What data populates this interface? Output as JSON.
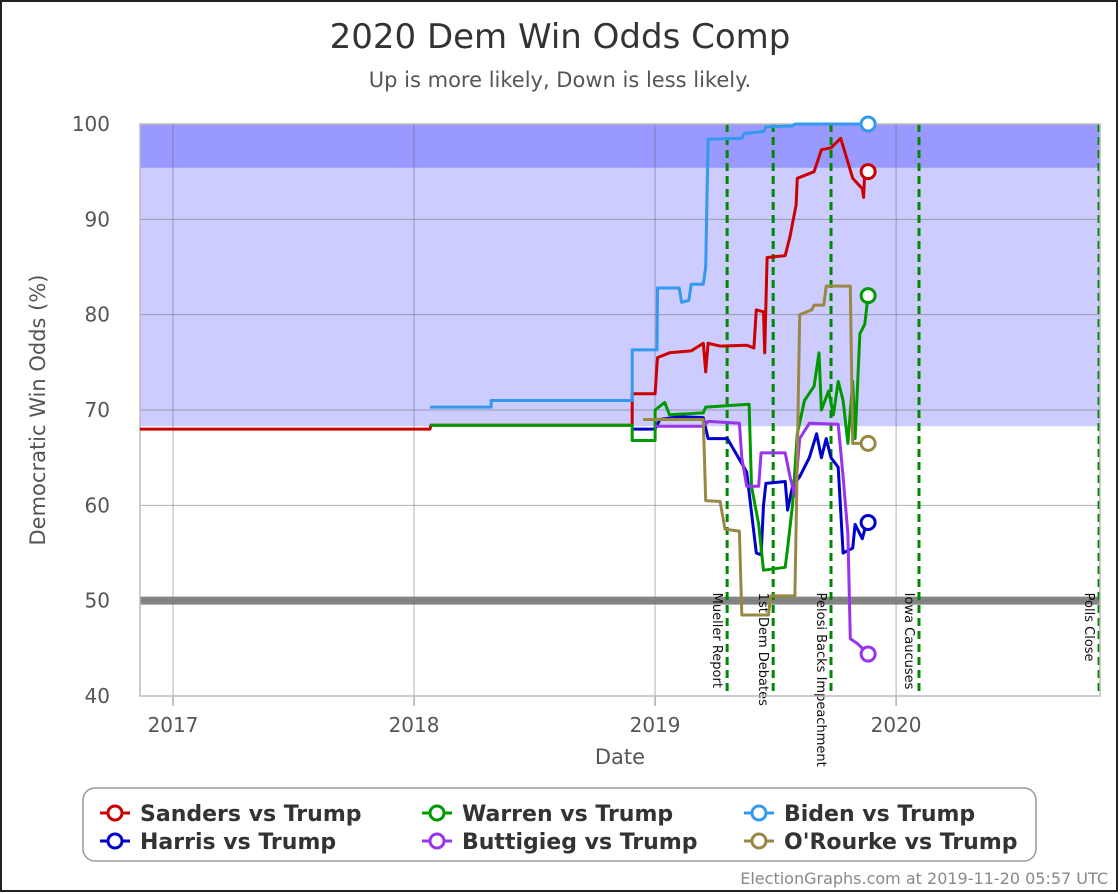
{
  "chart_data": {
    "type": "line",
    "title": "2020 Dem Win Odds Comp",
    "subtitle": "Up is more likely, Down is less likely.",
    "x_label": "Date",
    "y_label": "Democratic Win Odds (%)",
    "footer": "ElectionGraphs.com at 2019-11-20 05:57 UTC",
    "xlim": [
      2016.863,
      2020.846
    ],
    "xticks": [
      2017,
      2018,
      2019,
      2020
    ],
    "ylim": [
      40,
      100
    ],
    "yticks": [
      40,
      50,
      60,
      70,
      80,
      90,
      100
    ],
    "grid": true,
    "bands": [
      {
        "from": 68.3,
        "to": 95.4,
        "color": "#ccccff"
      },
      {
        "from": 95.4,
        "to": 100,
        "color": "#9999ff"
      }
    ],
    "reference_line": {
      "value": 50,
      "color": "#777777"
    },
    "events": [
      {
        "label": "Mueller Report",
        "x": 2019.299
      },
      {
        "label": "1st Dem Debates",
        "x": 2019.49
      },
      {
        "label": "Pelosi Backs Impeachment",
        "x": 2019.73
      },
      {
        "label": "Iowa Caucuses",
        "x": 2020.095
      },
      {
        "label": "Polls Close",
        "x": 2020.842
      }
    ],
    "series": [
      {
        "name": "Sanders vs Trump",
        "color": "#cc0000",
        "x": [
          2016.863,
          2018.066,
          2018.07,
          2018.905,
          2018.905,
          2019.0,
          2019.01,
          2019.06,
          2019.15,
          2019.2,
          2019.21,
          2019.22,
          2019.27,
          2019.38,
          2019.41,
          2019.42,
          2019.45,
          2019.455,
          2019.465,
          2019.54,
          2019.56,
          2019.585,
          2019.59,
          2019.66,
          2019.69,
          2019.73,
          2019.77,
          2019.8,
          2019.82,
          2019.86,
          2019.865,
          2019.87,
          2019.884
        ],
        "values": [
          68,
          68,
          68.4,
          68.4,
          71.7,
          71.7,
          75.5,
          76,
          76.2,
          77,
          74,
          77,
          76.7,
          76.8,
          76.5,
          80.5,
          80.3,
          76,
          86,
          86.2,
          88.2,
          91.5,
          94.3,
          95,
          97.3,
          97.5,
          98.5,
          96,
          94.3,
          93.2,
          92.3,
          95,
          95
        ]
      },
      {
        "name": "Harris vs Trump",
        "color": "#0000cc",
        "x": [
          2018.905,
          2019.0,
          2019.02,
          2019.1,
          2019.2,
          2019.22,
          2019.3,
          2019.38,
          2019.42,
          2019.44,
          2019.45,
          2019.46,
          2019.54,
          2019.55,
          2019.57,
          2019.6,
          2019.64,
          2019.67,
          2019.69,
          2019.71,
          2019.73,
          2019.76,
          2019.78,
          2019.82,
          2019.83,
          2019.86,
          2019.87,
          2019.884
        ],
        "values": [
          68,
          68,
          69,
          69.3,
          69.2,
          67,
          67,
          63.5,
          55,
          54.8,
          60,
          62.3,
          62.5,
          59.5,
          62,
          63,
          65,
          67.5,
          65,
          67,
          65,
          64,
          55,
          55.5,
          58,
          56.5,
          57.5,
          58.2
        ]
      },
      {
        "name": "Warren vs Trump",
        "color": "#009900",
        "x": [
          2018.066,
          2018.905,
          2018.905,
          2019.0,
          2019.0,
          2019.04,
          2019.06,
          2019.2,
          2019.21,
          2019.39,
          2019.4,
          2019.43,
          2019.45,
          2019.54,
          2019.55,
          2019.57,
          2019.59,
          2019.62,
          2019.66,
          2019.68,
          2019.69,
          2019.72,
          2019.74,
          2019.76,
          2019.78,
          2019.8,
          2019.82,
          2019.83,
          2019.85,
          2019.87,
          2019.884
        ],
        "values": [
          68.4,
          68.4,
          66.8,
          66.8,
          70,
          70.8,
          69.5,
          69.7,
          70.3,
          70.6,
          62,
          58,
          53.2,
          53.5,
          55.5,
          60,
          67.5,
          71,
          72.5,
          76,
          70,
          72,
          69.5,
          73,
          71,
          66.5,
          73,
          67,
          78,
          79,
          82
        ]
      },
      {
        "name": "Buttigieg vs Trump",
        "color": "#9933ee",
        "x": [
          2019.0,
          2019.2,
          2019.22,
          2019.35,
          2019.36,
          2019.38,
          2019.43,
          2019.44,
          2019.54,
          2019.56,
          2019.58,
          2019.6,
          2019.64,
          2019.76,
          2019.78,
          2019.8,
          2019.81,
          2019.84,
          2019.86,
          2019.884
        ],
        "values": [
          68.3,
          68.3,
          68.8,
          68.6,
          65,
          62,
          62,
          65.5,
          65.5,
          63,
          61,
          67,
          68.6,
          68.5,
          63,
          57,
          46,
          45.5,
          45,
          44.4
        ]
      },
      {
        "name": "Biden vs Trump",
        "color": "#3399ee",
        "x": [
          2018.066,
          2018.32,
          2018.32,
          2018.905,
          2018.905,
          2019.008,
          2019.01,
          2019.1,
          2019.11,
          2019.14,
          2019.15,
          2019.2,
          2019.21,
          2019.22,
          2019.36,
          2019.37,
          2019.45,
          2019.46,
          2019.57,
          2019.58,
          2019.884
        ],
        "values": [
          70.3,
          70.3,
          71,
          71,
          76.3,
          76.3,
          82.8,
          82.8,
          81.3,
          81.5,
          83.2,
          83.2,
          85,
          98.4,
          98.5,
          99,
          99.2,
          99.7,
          99.8,
          100,
          100
        ]
      },
      {
        "name": "O'Rourke vs Trump",
        "color": "#998844",
        "x": [
          2018.95,
          2019.2,
          2019.21,
          2019.27,
          2019.29,
          2019.35,
          2019.36,
          2019.47,
          2019.48,
          2019.58,
          2019.59,
          2019.6,
          2019.65,
          2019.66,
          2019.7,
          2019.71,
          2019.81,
          2019.82,
          2019.884
        ],
        "values": [
          69,
          69,
          60.5,
          60.4,
          57.5,
          57.3,
          48.5,
          48.5,
          50.5,
          50.5,
          65,
          80,
          80.5,
          81,
          81,
          83,
          83,
          66.5,
          66.5
        ]
      }
    ]
  }
}
